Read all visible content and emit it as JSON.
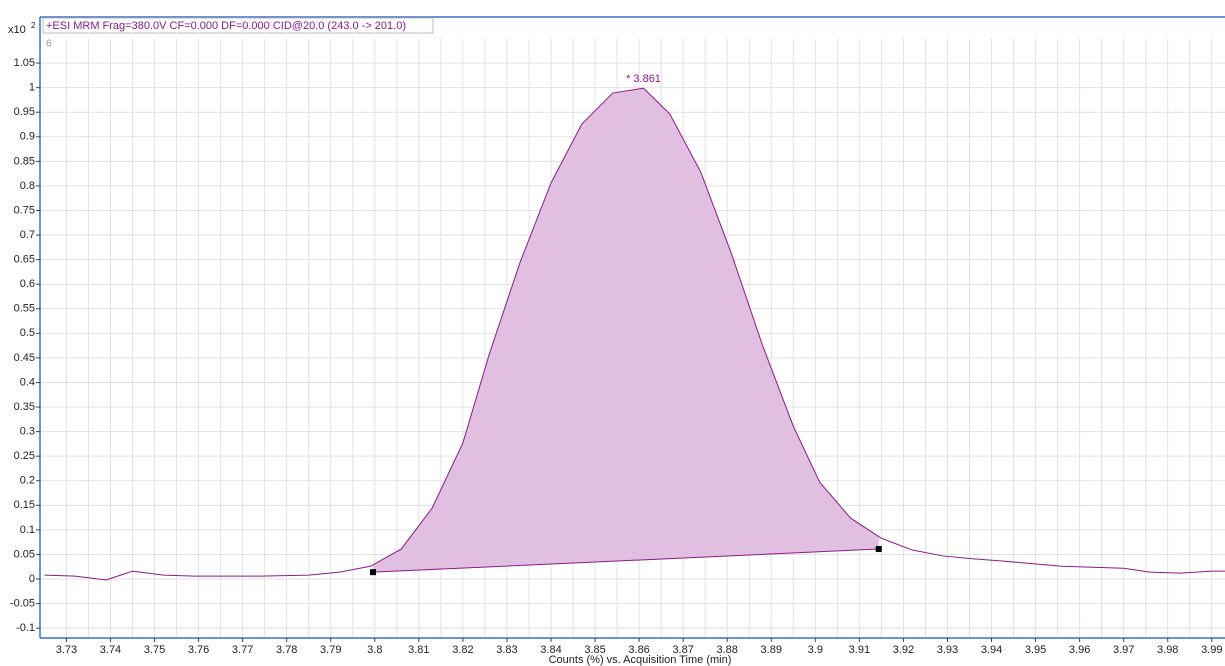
{
  "chart_data": {
    "type": "line",
    "title": "+ESI MRM Frag=380.0V CF=0.000 DF=0.000 CID@20.0 (243.0 -> 201.0)",
    "y_scale_label": "x10",
    "y_scale_exponent": "2",
    "panel_label": "6",
    "xlabel": "Counts (%) vs. Acquisition Time (min)",
    "x": [
      3.725,
      3.732,
      3.739,
      3.745,
      3.752,
      3.759,
      3.774,
      3.785,
      3.792,
      3.799,
      3.806,
      3.813,
      3.82,
      3.826,
      3.833,
      3.84,
      3.847,
      3.854,
      3.861,
      3.867,
      3.874,
      3.881,
      3.888,
      3.895,
      3.901,
      3.908,
      3.915,
      3.922,
      3.929,
      3.936,
      3.942,
      3.956,
      3.963,
      3.97,
      3.976,
      3.983,
      3.99,
      3.993
    ],
    "series": [
      {
        "color": "#8b1a8b",
        "values": [
          0.008,
          0.006,
          -0.002,
          0.016,
          0.008,
          0.006,
          0.006,
          0.008,
          0.014,
          0.026,
          0.061,
          0.144,
          0.277,
          0.458,
          0.645,
          0.806,
          0.926,
          0.989,
          0.999,
          0.946,
          0.828,
          0.661,
          0.476,
          0.311,
          0.197,
          0.124,
          0.083,
          0.059,
          0.047,
          0.041,
          0.037,
          0.026,
          0.024,
          0.022,
          0.014,
          0.012,
          0.016,
          0.016
        ]
      }
    ],
    "baseline": {
      "x": [
        3.7996,
        3.9144
      ],
      "y": [
        0.014,
        0.061
      ]
    },
    "area_color": "#e0bfe0",
    "annotations": [
      {
        "text": "* 3.861",
        "x": 3.861,
        "y": 0.999
      }
    ],
    "xlim": [
      3.724,
      3.993
    ],
    "ylim": [
      -0.12,
      1.1
    ],
    "xticks": [
      3.73,
      3.74,
      3.75,
      3.76,
      3.77,
      3.78,
      3.79,
      3.8,
      3.81,
      3.82,
      3.83,
      3.84,
      3.85,
      3.86,
      3.87,
      3.88,
      3.89,
      3.9,
      3.91,
      3.92,
      3.93,
      3.94,
      3.95,
      3.96,
      3.97,
      3.98,
      3.99
    ],
    "yticks": [
      -0.1,
      -0.05,
      0,
      0.05,
      0.1,
      0.15,
      0.2,
      0.25,
      0.3,
      0.35,
      0.4,
      0.45,
      0.5,
      0.55,
      0.6,
      0.65,
      0.7,
      0.75,
      0.8,
      0.85,
      0.9,
      0.95,
      1,
      1.05
    ],
    "grid": true
  }
}
